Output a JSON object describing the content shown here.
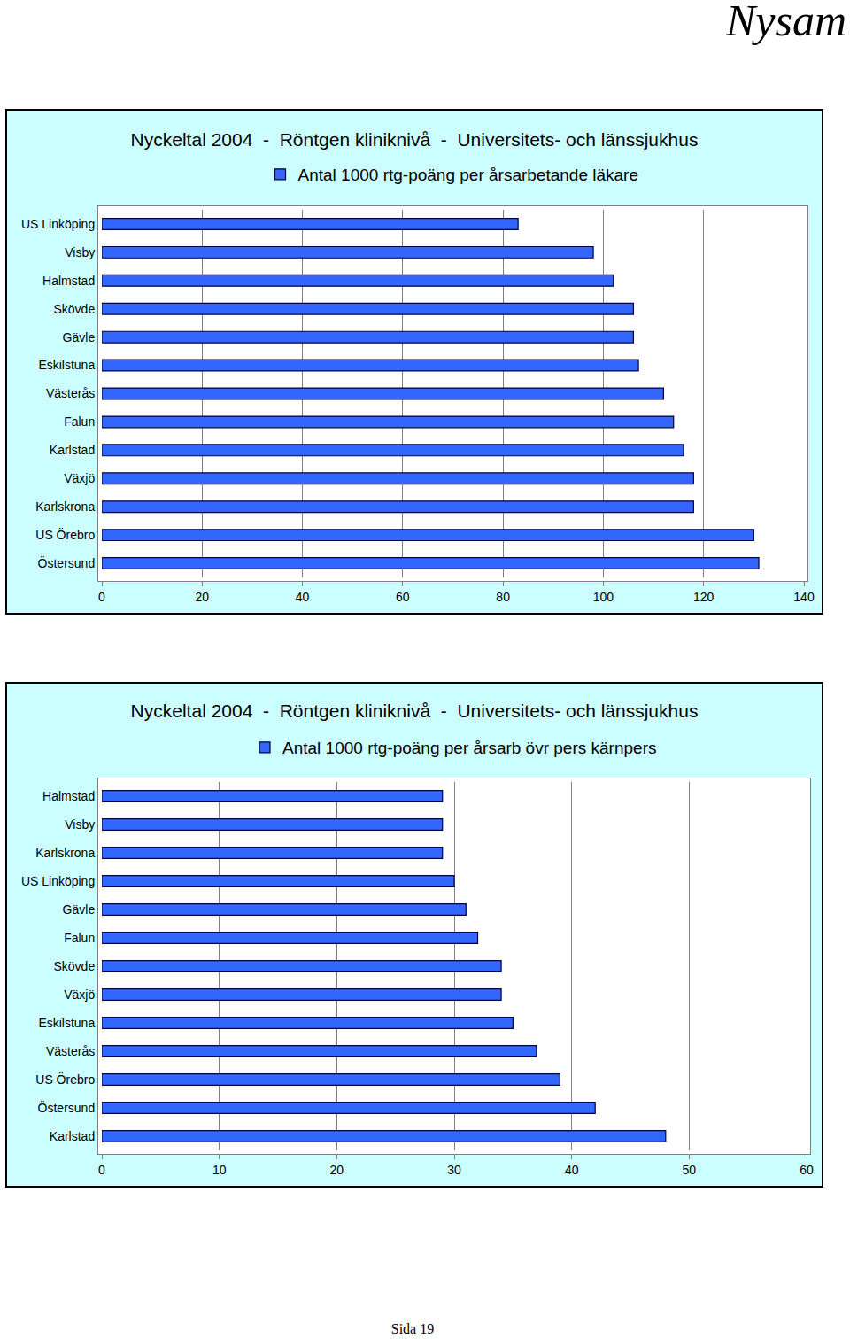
{
  "page": {
    "header": "Nysam",
    "footer": "Sida 19"
  },
  "chart_data": [
    {
      "type": "bar",
      "orientation": "horizontal",
      "title": "Nyckeltal 2004  -  Röntgen kliniknivå  -  Universitets- och länssjukhus",
      "categories": [
        "US Linköping",
        "Visby",
        "Halmstad",
        "Skövde",
        "Gävle",
        "Eskilstuna",
        "Västerås",
        "Falun",
        "Karlstad",
        "Växjö",
        "Karlskrona",
        "US Örebro",
        "Östersund"
      ],
      "series": [
        {
          "name": "Antal 1000 rtg-poäng per årsarbetande läkare",
          "color": "#3366ff",
          "values": [
            83,
            98,
            102,
            106,
            106,
            107,
            112,
            114,
            116,
            118,
            118,
            130,
            131
          ]
        }
      ],
      "xlim": [
        0,
        140
      ],
      "xticks": [
        0,
        20,
        40,
        60,
        80,
        100,
        120,
        140
      ],
      "grid": true,
      "legend": "top"
    },
    {
      "type": "bar",
      "orientation": "horizontal",
      "title": "Nyckeltal 2004  -  Röntgen kliniknivå  -  Universitets- och länssjukhus",
      "categories": [
        "Halmstad",
        "Visby",
        "Karlskrona",
        "US Linköping",
        "Gävle",
        "Falun",
        "Skövde",
        "Växjö",
        "Eskilstuna",
        "Västerås",
        "US Örebro",
        "Östersund",
        "Karlstad"
      ],
      "series": [
        {
          "name": "Antal 1000 rtg-poäng per årsarb övr pers kärnpers",
          "color": "#3366ff",
          "values": [
            29,
            29,
            29,
            30,
            31,
            32,
            34,
            34,
            35,
            37,
            39,
            42,
            48
          ]
        }
      ],
      "xlim": [
        0,
        60
      ],
      "xticks": [
        0,
        10,
        20,
        30,
        40,
        50,
        60
      ],
      "grid": true,
      "legend": "top"
    }
  ]
}
